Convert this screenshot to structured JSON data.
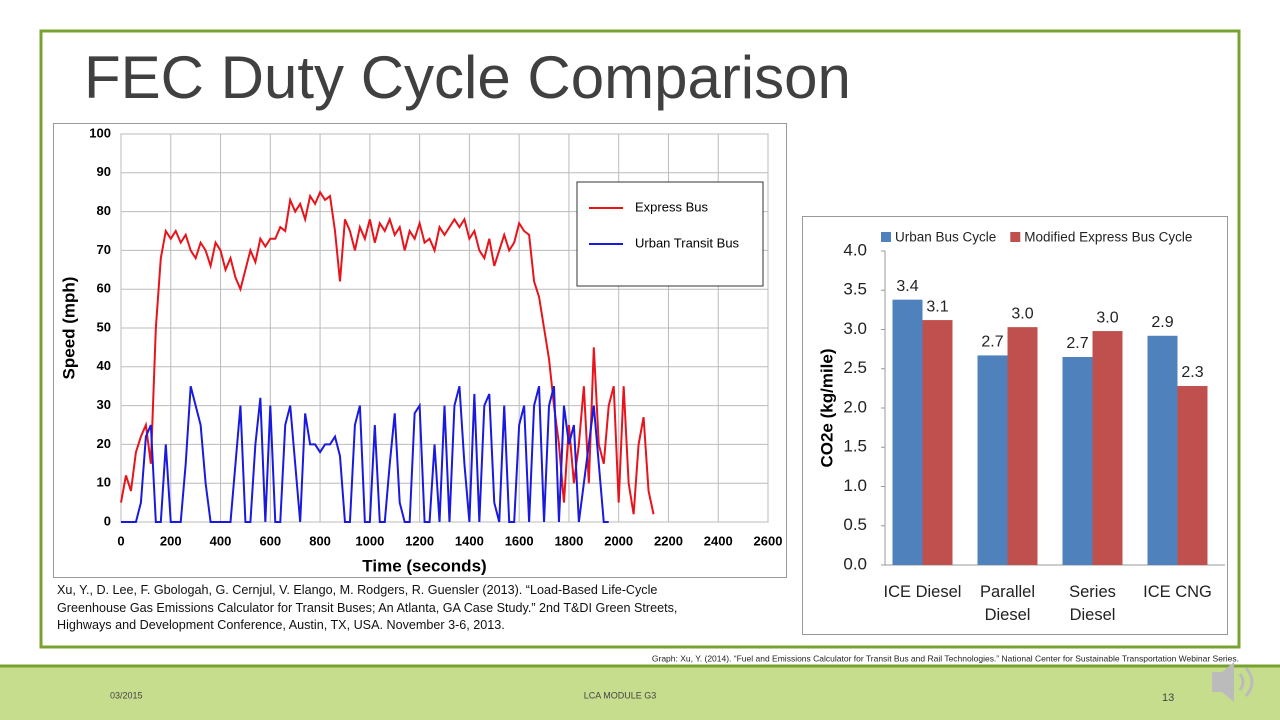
{
  "slide": {
    "title": "FEC Duty Cycle Comparison",
    "citation": "Xu, Y., D. Lee, F. Gbologah, G. Cernjul, V. Elango, M. Rodgers, R. Guensler (2013). “Load-Based Life-Cycle Greenhouse Gas Emissions Calculator for Transit Buses; An Atlanta, GA Case Study.” 2nd T&DI Green Streets, Highways and Development Conference, Austin, TX, USA. November 3-6, 2013.",
    "graph_credit": "Graph: Xu, Y. (2014). “Fuel and Emissions Calculator for Transit Bus and Rail Technologies.” National Center for Sustainable Transportation Webinar Series.",
    "date": "03/2015",
    "module": "LCA MODULE G3",
    "page": "13"
  },
  "chart_data": [
    {
      "type": "line",
      "xlabel": "Time (seconds)",
      "ylabel": "Speed (mph)",
      "xlim": [
        0,
        2600
      ],
      "xticks": [
        0,
        200,
        400,
        600,
        800,
        1000,
        1200,
        1400,
        1600,
        1800,
        2000,
        2200,
        2400,
        2600
      ],
      "ylim": [
        0,
        100
      ],
      "yticks": [
        0,
        10,
        20,
        30,
        40,
        50,
        60,
        70,
        80,
        90,
        100
      ],
      "grid": true,
      "legend": "upper right",
      "x": [
        0,
        20,
        40,
        60,
        80,
        100,
        120,
        140,
        160,
        180,
        200,
        220,
        240,
        260,
        280,
        300,
        320,
        340,
        360,
        380,
        400,
        420,
        440,
        460,
        480,
        500,
        520,
        540,
        560,
        580,
        600,
        620,
        640,
        660,
        680,
        700,
        720,
        740,
        760,
        780,
        800,
        820,
        840,
        860,
        880,
        900,
        920,
        940,
        960,
        980,
        1000,
        1020,
        1040,
        1060,
        1080,
        1100,
        1120,
        1140,
        1160,
        1180,
        1200,
        1220,
        1240,
        1260,
        1280,
        1300,
        1320,
        1340,
        1360,
        1380,
        1400,
        1420,
        1440,
        1460,
        1480,
        1500,
        1520,
        1540,
        1560,
        1580,
        1600,
        1620,
        1640,
        1660,
        1680,
        1700,
        1720,
        1740,
        1760,
        1780,
        1800,
        1820,
        1840,
        1860,
        1880,
        1900,
        1920,
        1940,
        1960,
        1980,
        2000,
        2020,
        2040,
        2060,
        2080,
        2100,
        2120,
        2140
      ],
      "series": [
        {
          "name": "Express Bus",
          "color": "#e8141b",
          "values": [
            5,
            12,
            8,
            18,
            22,
            25,
            15,
            50,
            68,
            75,
            73,
            75,
            72,
            74,
            70,
            68,
            72,
            70,
            66,
            72,
            70,
            65,
            68,
            63,
            60,
            65,
            70,
            67,
            73,
            71,
            73,
            73,
            76,
            75,
            83,
            80,
            82,
            78,
            84,
            82,
            85,
            83,
            84,
            75,
            62,
            78,
            75,
            70,
            76,
            73,
            78,
            72,
            77,
            75,
            78,
            74,
            76,
            70,
            75,
            73,
            77,
            72,
            73,
            70,
            76,
            74,
            76,
            78,
            76,
            78,
            73,
            75,
            70,
            68,
            73,
            66,
            70,
            74,
            70,
            72,
            77,
            75,
            74,
            62,
            58,
            50,
            42,
            30,
            20,
            5,
            25,
            10,
            20,
            35,
            10,
            45,
            20,
            15,
            30,
            35,
            5,
            35,
            10,
            2,
            20,
            27,
            8,
            2
          ]
        },
        {
          "name": "Urban Transit Bus",
          "color": "#1a1adf",
          "values": [
            0,
            0,
            0,
            0,
            5,
            22,
            25,
            0,
            0,
            20,
            0,
            0,
            0,
            15,
            35,
            30,
            25,
            10,
            0,
            0,
            0,
            0,
            0,
            15,
            30,
            0,
            0,
            20,
            32,
            0,
            30,
            0,
            0,
            25,
            30,
            15,
            0,
            28,
            20,
            20,
            18,
            20,
            20,
            22,
            17,
            0,
            0,
            25,
            30,
            0,
            0,
            25,
            0,
            0,
            15,
            28,
            5,
            0,
            0,
            28,
            30,
            0,
            0,
            20,
            0,
            30,
            0,
            30,
            35,
            15,
            0,
            33,
            0,
            30,
            33,
            5,
            0,
            30,
            0,
            0,
            25,
            30,
            0,
            30,
            35,
            0,
            30,
            35,
            0,
            30,
            20,
            25,
            0,
            10,
            20,
            30,
            15,
            0,
            0,
            null,
            null,
            null,
            null,
            null,
            null,
            null,
            null,
            null
          ]
        }
      ]
    },
    {
      "type": "bar",
      "ylabel": "CO2e (kg/mile)",
      "legend": "top",
      "categories": [
        "ICE Diesel",
        "Parallel Diesel",
        "Series Diesel",
        "ICE CNG"
      ],
      "ylim": [
        0,
        4
      ],
      "yticks": [
        {
          "value": 0,
          "label": "0.0"
        },
        {
          "value": 0.5,
          "label": "0.5"
        },
        {
          "value": 1,
          "label": "1.0"
        },
        {
          "value": 1.5,
          "label": "1.5"
        },
        {
          "value": 2,
          "label": "2.0"
        },
        {
          "value": 2.5,
          "label": "2.5"
        },
        {
          "value": 3,
          "label": "3.0"
        },
        {
          "value": 3.5,
          "label": "3.5"
        },
        {
          "value": 4,
          "label": "4.0"
        }
      ],
      "series": [
        {
          "name": "Urban Bus Cycle",
          "color": "#4f81bd",
          "values": [
            3.38,
            2.67,
            2.65,
            2.92
          ],
          "value_labels": [
            "3.4",
            "2.7",
            "2.7",
            "2.9"
          ]
        },
        {
          "name": "Modified Express Bus Cycle",
          "color": "#c0504d",
          "values": [
            3.12,
            3.03,
            2.98,
            2.28
          ],
          "value_labels": [
            "3.1",
            "3.0",
            "3.0",
            "2.3"
          ]
        }
      ]
    }
  ]
}
